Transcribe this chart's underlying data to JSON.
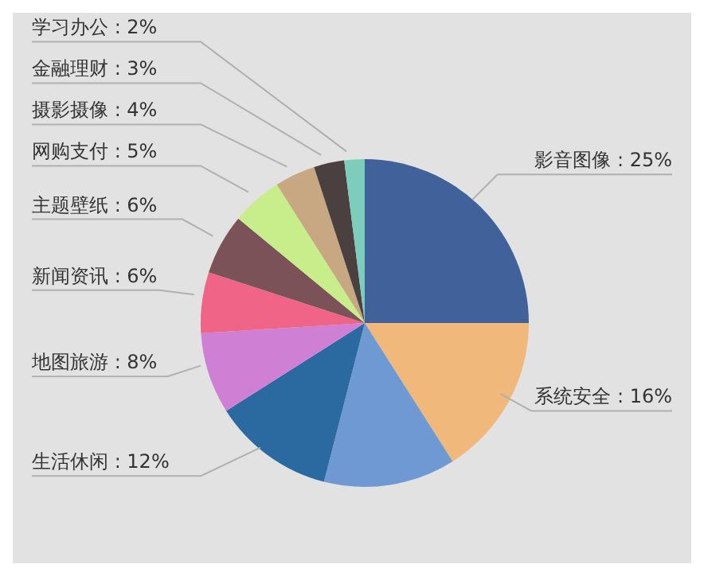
{
  "chart_data": {
    "type": "pie",
    "categories": [
      "影音图像",
      "系统安全",
      null,
      "生活休闲",
      "地图旅游",
      "新闻资讯",
      "主题壁纸",
      "网购支付",
      "摄影摄像",
      "金融理财",
      "学习办公"
    ],
    "values": [
      25,
      16,
      13,
      12,
      8,
      6,
      6,
      5,
      4,
      3,
      2
    ],
    "value_labels": [
      "25%",
      "16%",
      null,
      "12%",
      "8%",
      "6%",
      "6%",
      "5%",
      "4%",
      "3%",
      "2%"
    ],
    "colors": [
      "#40619a",
      "#f0b87a",
      "#6e99d2",
      "#2a6aa0",
      "#cf80d4",
      "#ef6487",
      "#7a5258",
      "#c8ee8c",
      "#c8a882",
      "#4a4040",
      "#7ccdbc"
    ]
  }
}
